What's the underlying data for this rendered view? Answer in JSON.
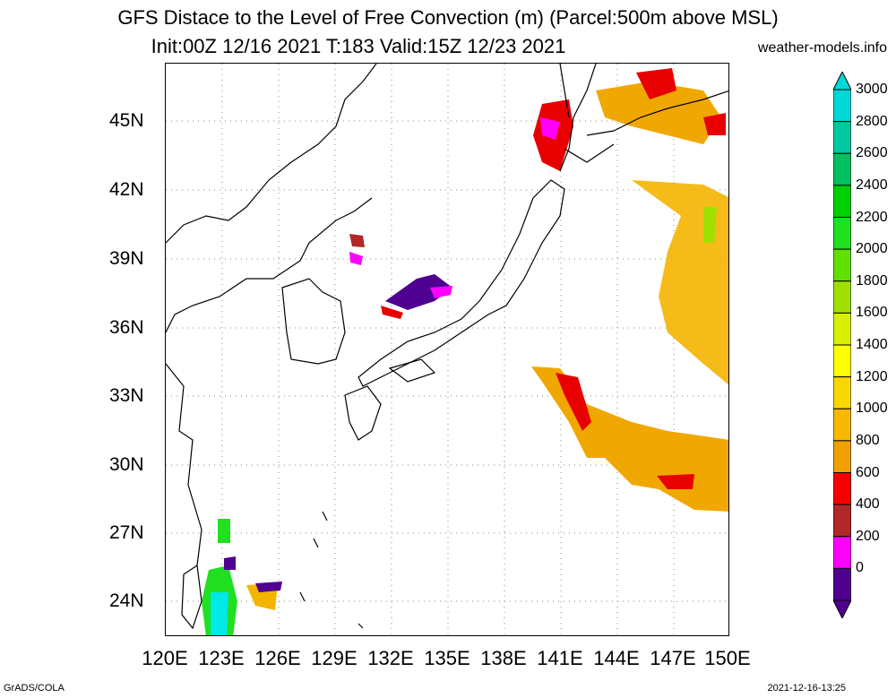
{
  "title": {
    "line1": "GFS Distace to the Level of Free Convection (m) (Parcel:500m above MSL)",
    "line2": "Init:00Z 12/16 2021 T:183 Valid:15Z 12/23 2021",
    "site": "weather-models.info"
  },
  "axes": {
    "lat_labels": [
      "45N",
      "42N",
      "39N",
      "36N",
      "33N",
      "30N",
      "27N",
      "24N"
    ],
    "lon_labels": [
      "120E",
      "123E",
      "126E",
      "129E",
      "132E",
      "135E",
      "138E",
      "141E",
      "144E",
      "147E",
      "150E"
    ]
  },
  "colorbar": {
    "labels": [
      "3000",
      "2800",
      "2600",
      "2400",
      "2200",
      "2000",
      "1800",
      "1600",
      "1400",
      "1200",
      "1000",
      "800",
      "600",
      "400",
      "200",
      "0"
    ],
    "colors": [
      "#00d8d8",
      "#00c8a0",
      "#00c060",
      "#00d000",
      "#20e020",
      "#60e000",
      "#a0e000",
      "#d8f000",
      "#ffff00",
      "#f8d800",
      "#f8b800",
      "#f0a000",
      "#f80000",
      "#b02828",
      "#ff00ff",
      "#500090"
    ]
  },
  "footer": {
    "left": "GrADS/COLA",
    "right": "2021-12-16-13:25"
  }
}
